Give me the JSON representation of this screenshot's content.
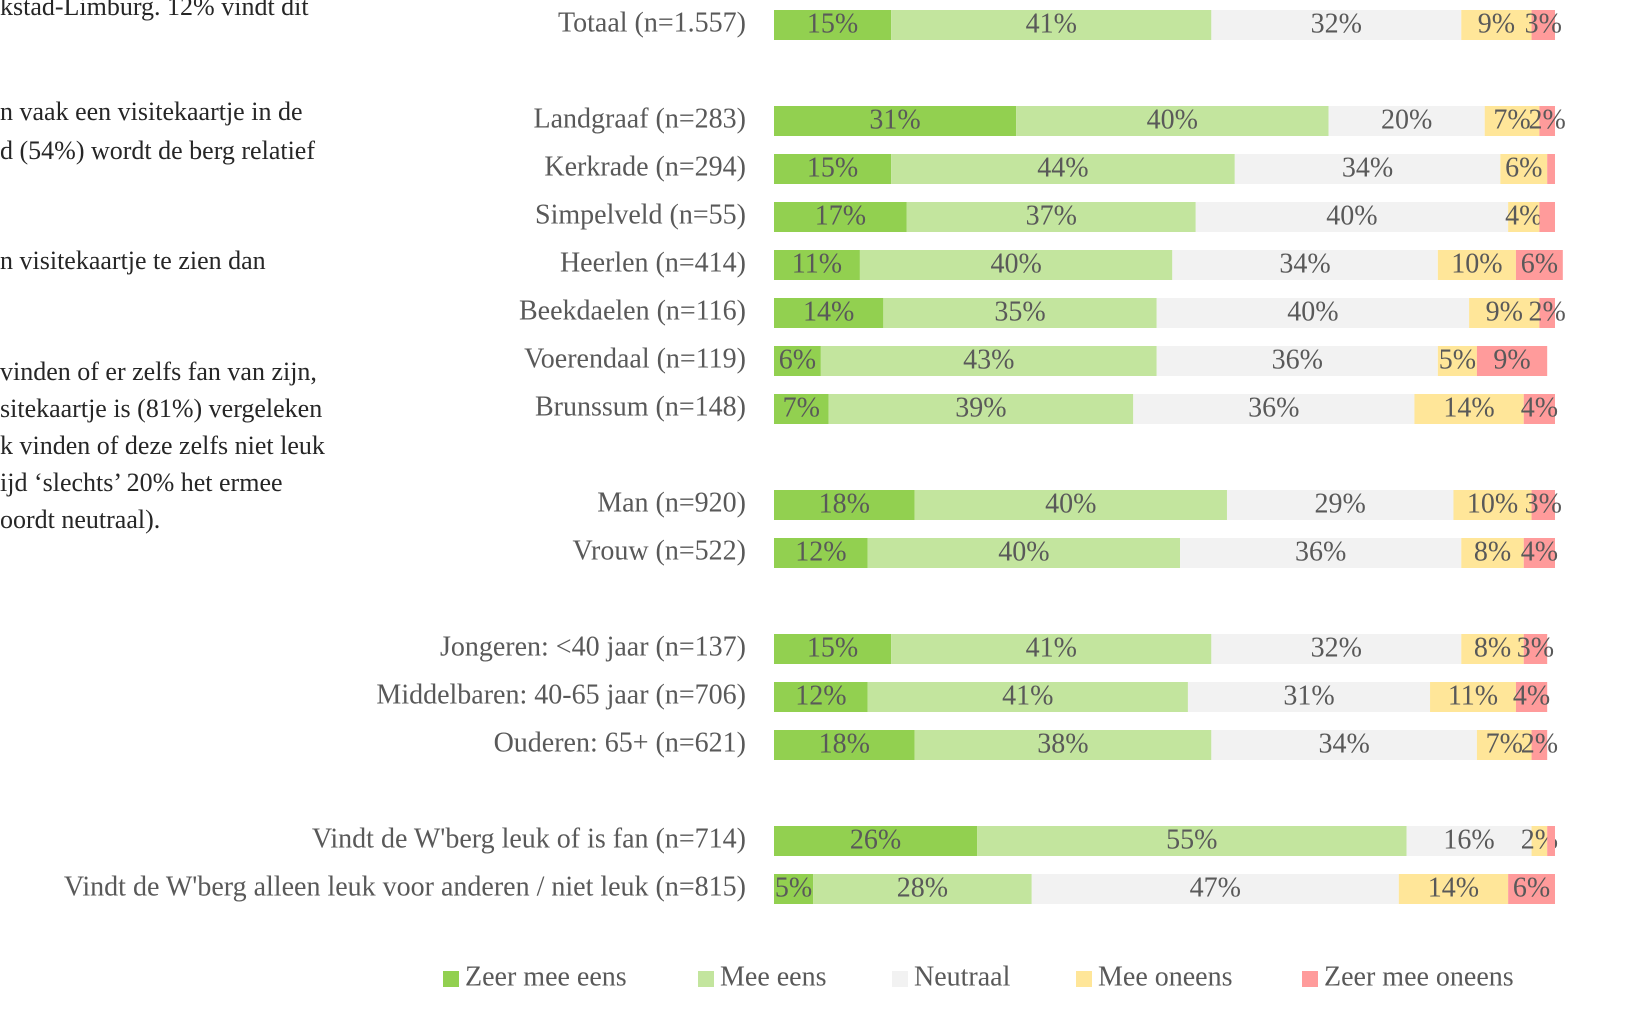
{
  "side_text": [
    "kstad-Limburg. 12% vindt dit",
    "n vaak een visitekaartje in de",
    "d (54%) wordt de berg relatief",
    "n visitekaartje te zien dan",
    "vinden of er zelfs fan van zijn,",
    "sitekaartje is (81%) vergeleken",
    "k vinden of deze zelfs niet leuk",
    "ijd ‘slechts’ 20% het ermee",
    "oordt neutraal)."
  ],
  "chart_data": {
    "type": "stacked-barh",
    "categories": [
      "Totaal (n=1.557)",
      null,
      "Landgraaf (n=283)",
      "Kerkrade (n=294)",
      "Simpelveld (n=55)",
      "Heerlen (n=414)",
      "Beekdaelen (n=116)",
      "Voerendaal (n=119)",
      "Brunssum (n=148)",
      null,
      "Man (n=920)",
      "Vrouw (n=522)",
      null,
      "Jongeren: <40 jaar (n=137)",
      "Middelbaren: 40-65 jaar (n=706)",
      "Ouderen: 65+ (n=621)",
      null,
      "Vindt de W'berg leuk of is fan (n=714)",
      "Vindt de W'berg alleen leuk voor anderen / niet leuk (n=815)"
    ],
    "xlim": [
      0,
      100
    ],
    "series": [
      {
        "name": "Zeer mee eens",
        "color": "#92d050",
        "values": [
          15,
          null,
          31,
          15,
          17,
          11,
          14,
          6,
          7,
          null,
          18,
          12,
          null,
          15,
          12,
          18,
          null,
          26,
          5
        ],
        "value_labels": [
          "15%",
          null,
          "31%",
          "15%",
          "17%",
          "11%",
          "14%",
          "6%",
          "7%",
          null,
          "18%",
          "12%",
          null,
          "15%",
          "12%",
          "18%",
          null,
          "26%",
          "5%"
        ]
      },
      {
        "name": "Mee eens",
        "color": "#c3e59e",
        "values": [
          41,
          null,
          40,
          44,
          37,
          40,
          35,
          43,
          39,
          null,
          40,
          40,
          null,
          41,
          41,
          38,
          null,
          55,
          28
        ],
        "value_labels": [
          "41%",
          null,
          "40%",
          "44%",
          "37%",
          "40%",
          "35%",
          "43%",
          "39%",
          null,
          "40%",
          "40%",
          null,
          "41%",
          "41%",
          "38%",
          null,
          "55%",
          "28%"
        ]
      },
      {
        "name": "Neutraal",
        "color": "#f2f2f2",
        "values": [
          32,
          null,
          20,
          34,
          40,
          34,
          40,
          36,
          36,
          null,
          29,
          36,
          null,
          32,
          31,
          34,
          null,
          16,
          47
        ],
        "value_labels": [
          "32%",
          null,
          "20%",
          "34%",
          "40%",
          "34%",
          "40%",
          "36%",
          "36%",
          null,
          "29%",
          "36%",
          null,
          "32%",
          "31%",
          "34%",
          null,
          "16%",
          "47%"
        ]
      },
      {
        "name": "Mee oneens",
        "color": "#ffe699",
        "values": [
          9,
          null,
          7,
          6,
          4,
          10,
          9,
          5,
          14,
          null,
          10,
          8,
          null,
          8,
          11,
          7,
          null,
          2,
          14
        ],
        "value_labels": [
          "9%",
          null,
          "7%",
          "6%",
          "4%",
          "10%",
          "9%",
          "5%",
          "14%",
          null,
          "10%",
          "8%",
          null,
          "8%",
          "11%",
          "7%",
          null,
          "2%",
          "14%"
        ]
      },
      {
        "name": "Zeer mee oneens",
        "color": "#ff9b9b",
        "values": [
          3,
          null,
          2,
          1,
          2,
          6,
          2,
          9,
          4,
          null,
          3,
          4,
          null,
          3,
          4,
          2,
          null,
          1,
          6
        ],
        "value_labels": [
          "3%",
          null,
          "2%",
          null,
          null,
          "6%",
          "2%",
          "9%",
          "4%",
          null,
          "3%",
          "4%",
          null,
          "3%",
          "4%",
          "2%",
          null,
          null,
          "6%"
        ]
      }
    ]
  }
}
